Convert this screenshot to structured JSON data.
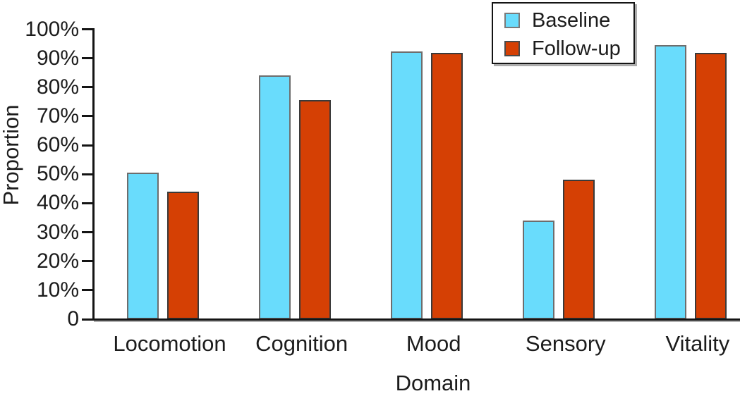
{
  "chart_data": {
    "type": "bar",
    "title": "",
    "xlabel": "Domain",
    "ylabel": "Proportion",
    "categories": [
      "Locomotion",
      "Cognition",
      "Mood",
      "Sensory",
      "Vitality"
    ],
    "series": [
      {
        "name": "Baseline",
        "color": "#69DCFC",
        "border_color": "#6d6d6d",
        "values": [
          50.5,
          84.0,
          92.4,
          34.0,
          94.5
        ]
      },
      {
        "name": "Follow-up",
        "color": "#D54004",
        "border_color": "#3a3a3a",
        "values": [
          44.0,
          75.5,
          91.8,
          48.2,
          91.9
        ]
      }
    ],
    "ylim": [
      0,
      100
    ],
    "y_ticks": [
      {
        "value": 0,
        "label": "0"
      },
      {
        "value": 10,
        "label": "10%"
      },
      {
        "value": 20,
        "label": "20%"
      },
      {
        "value": 30,
        "label": "30%"
      },
      {
        "value": 40,
        "label": "40%"
      },
      {
        "value": 50,
        "label": "50%"
      },
      {
        "value": 60,
        "label": "60%"
      },
      {
        "value": 70,
        "label": "70%"
      },
      {
        "value": 80,
        "label": "80%"
      },
      {
        "value": 90,
        "label": "90%"
      },
      {
        "value": 100,
        "label": "100%"
      }
    ],
    "legend_position": "top-right",
    "grid": false,
    "background_color": "#ffffff",
    "axis_color": "#141414",
    "text_color": "#1c1c1c"
  }
}
